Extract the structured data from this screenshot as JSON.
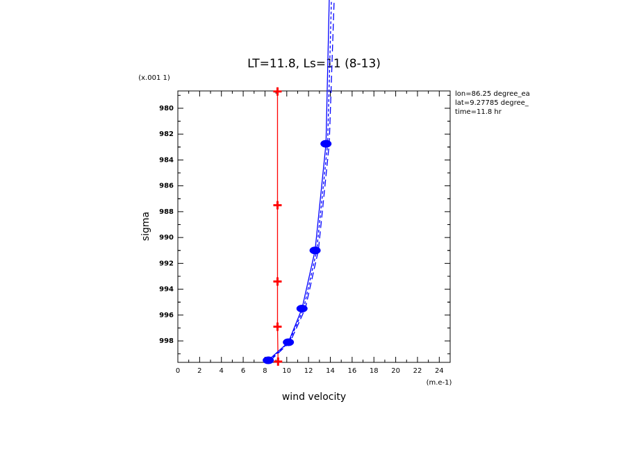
{
  "chart_data": {
    "type": "line",
    "title": "LT=11.8, Ls=11 (8-13)",
    "y_multiplier": "(x.001 1)",
    "x_units": "(m.e-1)",
    "xlabel": "wind velocity",
    "ylabel": "sigma",
    "annotations": [
      "lon=86.25 degree_ea",
      "lat=9.27785 degree_",
      "time=11.8 hr"
    ],
    "xlim": [
      0,
      25
    ],
    "xticks": [
      0,
      2,
      4,
      6,
      8,
      10,
      12,
      14,
      16,
      18,
      20,
      22,
      24
    ],
    "ylim": [
      978.66,
      999.66
    ],
    "yticks": [
      980,
      982,
      984,
      986,
      988,
      990,
      992,
      994,
      996,
      998
    ],
    "y_inverted": true,
    "minor_ticks": true,
    "series": [
      {
        "color": "#ff0000",
        "dash": "solid",
        "marker": "plus",
        "x": [
          9.15,
          9.15,
          9.15,
          9.15,
          9.2
        ],
        "y": [
          978.7,
          987.5,
          993.4,
          996.9,
          999.6
        ]
      },
      {
        "color": "#0000ff",
        "dash": "solid",
        "marker": "blob",
        "x": [
          8.3,
          10.15,
          11.4,
          12.6,
          13.6,
          13.9
        ],
        "y": [
          999.5,
          998.1,
          995.5,
          991.0,
          982.75,
          971.6
        ]
      },
      {
        "color": "#0000ff",
        "dash": "long",
        "marker": "none",
        "x": [
          8.5,
          10.3,
          11.7,
          12.9,
          13.9,
          14.35
        ],
        "y": [
          999.5,
          998.1,
          995.5,
          991.0,
          982.75,
          971.6
        ]
      },
      {
        "color": "#0000ff",
        "dash": "short",
        "marker": "none",
        "x": [
          8.4,
          10.2,
          11.55,
          12.75,
          13.75,
          14.1
        ],
        "y": [
          999.5,
          998.1,
          995.5,
          991.0,
          982.75,
          971.6
        ]
      }
    ]
  }
}
